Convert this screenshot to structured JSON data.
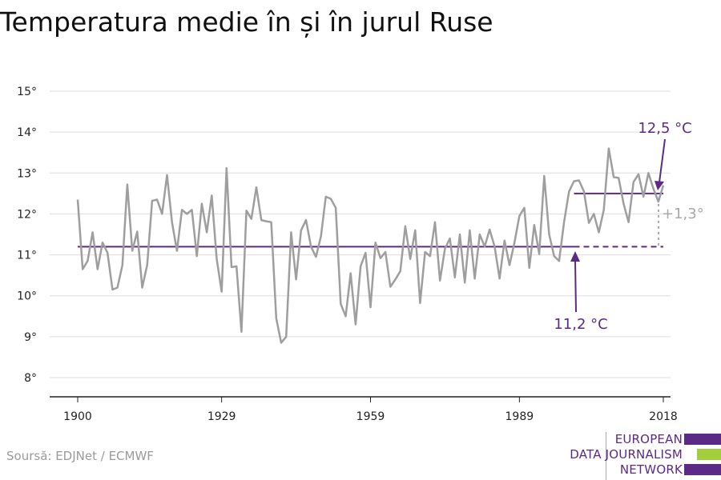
{
  "title": "Temperatura medie în și în jurul Ruse",
  "source": "Soursă: EDJNet / ECMWF",
  "logo": {
    "lines": [
      "EUROPEAN",
      "DATA JOURNALISM",
      "NETWORK"
    ],
    "colors": [
      "#5b2a86",
      "#a3cf3c",
      "#5b2a86"
    ]
  },
  "chart_data": {
    "type": "line",
    "title": "Temperatura medie în și în jurul Ruse",
    "xlabel": "",
    "ylabel": "",
    "xlim": [
      1900,
      2018
    ],
    "ylim": [
      8,
      15
    ],
    "grid": true,
    "x_ticks": [
      1900,
      1929,
      1959,
      1989,
      2018
    ],
    "y_ticks": [
      {
        "value": 8,
        "label": "8°"
      },
      {
        "value": 9,
        "label": "9°"
      },
      {
        "value": 10,
        "label": "10°"
      },
      {
        "value": 11,
        "label": "11°"
      },
      {
        "value": 12,
        "label": "12°"
      },
      {
        "value": 13,
        "label": "13°"
      },
      {
        "value": 14,
        "label": "14°"
      },
      {
        "value": 15,
        "label": "15°"
      }
    ],
    "series": [
      {
        "color": "#9e9e9e",
        "x": [
          1900,
          1901,
          1902,
          1903,
          1904,
          1905,
          1906,
          1907,
          1908,
          1909,
          1910,
          1911,
          1912,
          1913,
          1914,
          1915,
          1916,
          1917,
          1918,
          1919,
          1920,
          1921,
          1922,
          1923,
          1924,
          1925,
          1926,
          1927,
          1928,
          1929,
          1930,
          1931,
          1932,
          1933,
          1934,
          1935,
          1936,
          1937,
          1938,
          1939,
          1940,
          1941,
          1942,
          1943,
          1944,
          1945,
          1946,
          1947,
          1948,
          1949,
          1950,
          1951,
          1952,
          1953,
          1954,
          1955,
          1956,
          1957,
          1958,
          1959,
          1960,
          1961,
          1962,
          1963,
          1964,
          1965,
          1966,
          1967,
          1968,
          1969,
          1970,
          1971,
          1972,
          1973,
          1974,
          1975,
          1976,
          1977,
          1978,
          1979,
          1980,
          1981,
          1982,
          1983,
          1984,
          1985,
          1986,
          1987,
          1988,
          1989,
          1990,
          1991,
          1992,
          1993,
          1994,
          1995,
          1996,
          1997,
          1998,
          1999,
          2000,
          2001,
          2002,
          2003,
          2004,
          2005,
          2006,
          2007,
          2008,
          2009,
          2010,
          2011,
          2012,
          2013,
          2014,
          2015,
          2016,
          2017,
          2018
        ],
        "y": [
          12.35,
          10.65,
          10.85,
          11.55,
          10.65,
          11.3,
          11.05,
          10.15,
          10.2,
          10.75,
          12.72,
          11.1,
          11.57,
          10.2,
          10.75,
          12.32,
          12.35,
          12.0,
          12.95,
          11.8,
          11.1,
          12.1,
          12.0,
          12.1,
          10.97,
          12.25,
          11.55,
          12.45,
          10.9,
          10.1,
          13.12,
          10.7,
          10.72,
          9.12,
          12.08,
          11.88,
          12.65,
          11.85,
          11.82,
          11.8,
          9.45,
          8.85,
          9.0,
          11.55,
          10.4,
          11.6,
          11.85,
          11.2,
          10.95,
          11.45,
          12.42,
          12.37,
          12.15,
          9.8,
          9.5,
          10.55,
          9.3,
          10.72,
          11.05,
          9.72,
          11.3,
          10.92,
          11.07,
          10.22,
          10.4,
          10.6,
          11.7,
          10.9,
          11.6,
          9.82,
          11.07,
          10.97,
          11.8,
          10.37,
          11.15,
          11.4,
          10.45,
          11.5,
          10.32,
          11.6,
          10.42,
          11.5,
          11.2,
          11.62,
          11.2,
          10.42,
          11.35,
          10.75,
          11.3,
          11.95,
          12.15,
          10.68,
          11.73,
          11.02,
          12.93,
          11.5,
          10.97,
          10.85,
          11.8,
          12.55,
          12.8,
          12.82,
          12.55,
          11.78,
          12.0,
          11.55,
          12.1,
          13.6,
          12.9,
          12.88,
          12.25,
          11.8,
          12.78,
          12.97,
          12.42,
          13.0,
          12.62,
          12.3,
          12.7
        ]
      }
    ],
    "reference_lines": [
      {
        "value": 11.2,
        "from": 1900,
        "to": 2018,
        "dashed_from": 2000,
        "color": "#5b2a86"
      },
      {
        "value": 12.5,
        "from": 2000,
        "to": 2018,
        "color": "#5b2a86"
      }
    ],
    "annotations": [
      {
        "text": "12,5 °C",
        "color": "#5b2a86"
      },
      {
        "text": "+1,3°",
        "color": "#a8a8a8"
      },
      {
        "text": "11,2 °C",
        "color": "#5b2a86"
      }
    ]
  }
}
